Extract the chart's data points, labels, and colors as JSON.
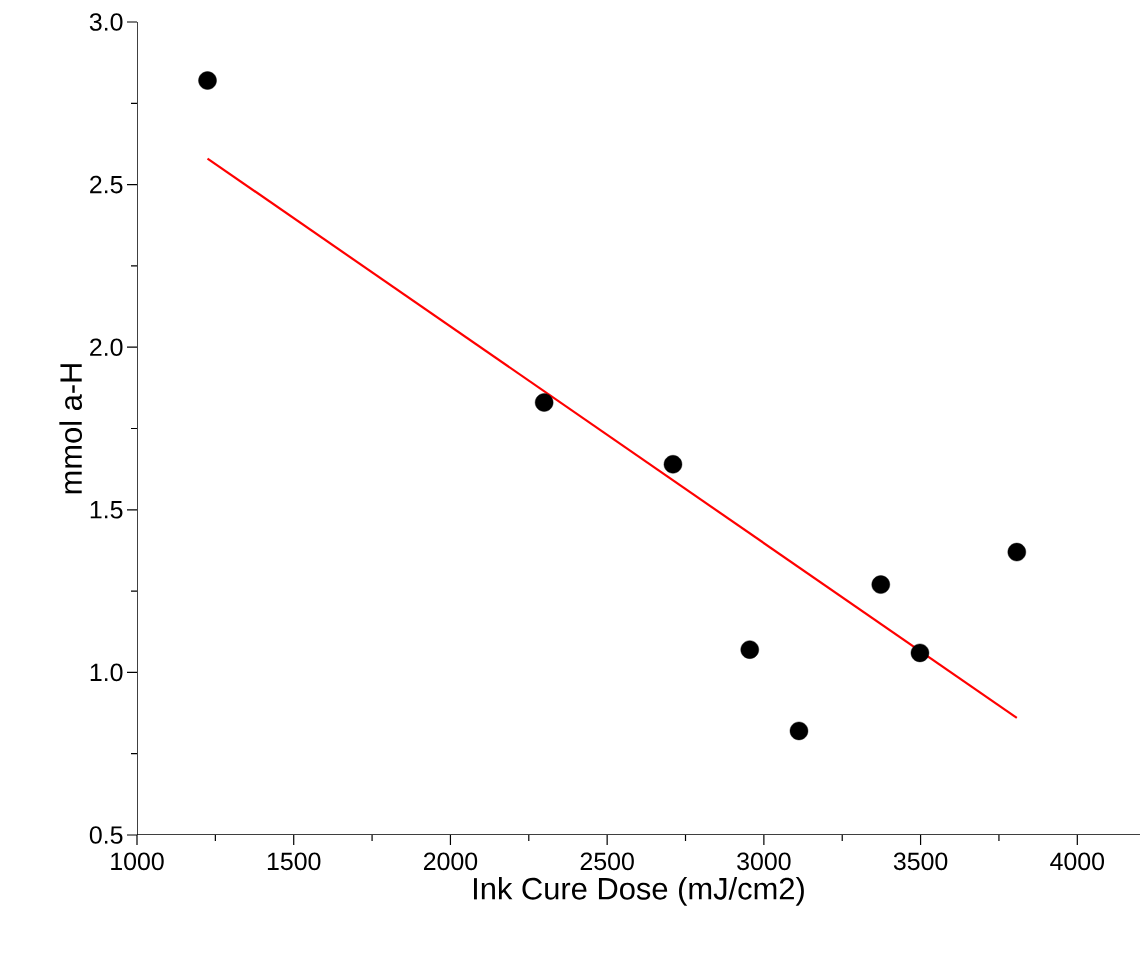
{
  "chart_data": {
    "type": "scatter",
    "xlabel": "Ink Cure Dose (mJ/cm2)",
    "ylabel": "mmol a-H",
    "xlim": [
      1000,
      4200
    ],
    "ylim": [
      0.5,
      3.0
    ],
    "xticks": [
      1000,
      1500,
      2000,
      2500,
      3000,
      3500,
      4000
    ],
    "yticks": [
      {
        "value": 0.5,
        "label": "0.5"
      },
      {
        "value": 1,
        "label": "1.0"
      },
      {
        "value": 1.5,
        "label": "1.5"
      },
      {
        "value": 2,
        "label": "2.0"
      },
      {
        "value": 2.5,
        "label": "2.5"
      },
      {
        "value": 3,
        "label": "3.0"
      }
    ],
    "series": [
      {
        "color": "#000000",
        "marker": "circle",
        "x": [
          1225,
          2299,
          2710,
          2955,
          3112,
          3373,
          3498,
          3807
        ],
        "values": [
          2.82,
          1.83,
          1.64,
          1.07,
          0.82,
          1.27,
          1.06,
          1.37
        ]
      },
      {
        "type": "line",
        "color": "#ff0000",
        "marker": "none",
        "line_style": "solid",
        "x": [
          1225,
          3807
        ],
        "values": [
          2.58,
          0.86
        ]
      }
    ]
  }
}
